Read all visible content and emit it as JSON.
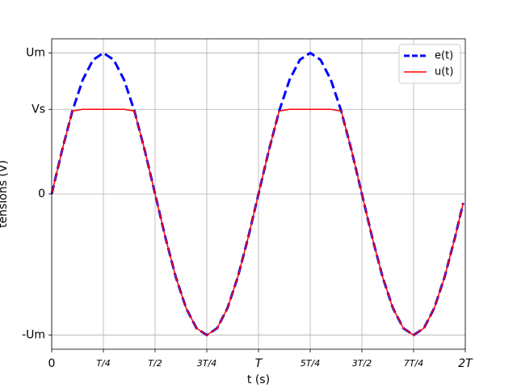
{
  "chart_data": {
    "type": "line",
    "xlabel": "t (s)",
    "ylabel": "tensions (V)",
    "x": [
      0,
      0.05,
      0.1,
      0.15,
      0.2,
      0.25,
      0.3,
      0.35,
      0.4,
      0.45,
      0.5,
      0.55,
      0.6,
      0.65,
      0.7,
      0.75,
      0.8,
      0.85,
      0.9,
      0.95,
      1,
      1.05,
      1.1,
      1.15,
      1.2,
      1.25,
      1.3,
      1.35,
      1.4,
      1.45,
      1.5,
      1.55,
      1.6,
      1.65,
      1.7,
      1.75,
      1.8,
      1.85,
      1.9,
      1.95,
      1.99
    ],
    "series": [
      {
        "name": "e(t)",
        "color": "#0000ff",
        "dashed": true,
        "values": [
          0,
          0.309,
          0.588,
          0.809,
          0.951,
          1,
          0.951,
          0.809,
          0.588,
          0.309,
          0,
          -0.309,
          -0.588,
          -0.809,
          -0.951,
          -1,
          -0.951,
          -0.809,
          -0.588,
          -0.309,
          0,
          0.309,
          0.588,
          0.809,
          0.951,
          1,
          0.951,
          0.809,
          0.588,
          0.309,
          0,
          -0.309,
          -0.588,
          -0.809,
          -0.951,
          -1,
          -0.951,
          -0.809,
          -0.588,
          -0.309,
          -0.063
        ]
      },
      {
        "name": "u(t)",
        "color": "#ff0000",
        "dashed": false,
        "values": [
          0,
          0.309,
          0.588,
          0.6,
          0.6,
          0.6,
          0.6,
          0.6,
          0.588,
          0.309,
          0,
          -0.309,
          -0.588,
          -0.809,
          -0.951,
          -1,
          -0.951,
          -0.809,
          -0.588,
          -0.309,
          0,
          0.309,
          0.588,
          0.6,
          0.6,
          0.6,
          0.6,
          0.6,
          0.588,
          0.309,
          0,
          -0.309,
          -0.588,
          -0.809,
          -0.951,
          -1,
          -0.951,
          -0.809,
          -0.588,
          -0.309,
          -0.063
        ]
      }
    ],
    "xlim": [
      0,
      2
    ],
    "ylim": [
      -1.1,
      1.1
    ],
    "xticks": [
      0,
      {
        "value": 0.25,
        "label": "T/4"
      },
      {
        "value": 0.5,
        "label": "T/2"
      },
      {
        "value": 0.75,
        "label": "3T/4"
      },
      {
        "value": 1,
        "label": "T"
      },
      {
        "value": 1.25,
        "label": "5T/4"
      },
      {
        "value": 1.5,
        "label": "3T/2"
      },
      {
        "value": 1.75,
        "label": "7T/4"
      },
      {
        "value": 2,
        "label": "2T"
      }
    ],
    "yticks": [
      {
        "value": -1,
        "label": "-Um"
      },
      0,
      {
        "value": 0.6,
        "label": "Vs"
      },
      {
        "value": 1,
        "label": "Um"
      }
    ],
    "grid": true,
    "legend": "upper right"
  }
}
